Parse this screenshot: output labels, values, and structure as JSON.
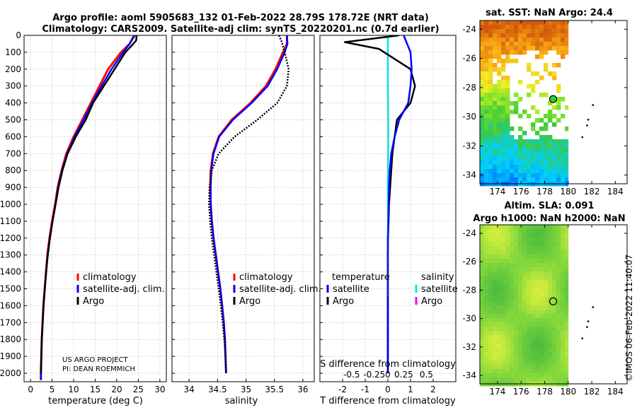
{
  "title": {
    "line1": "Argo profile: aoml 5905683_132 01-Feb-2022 28.79S 178.72E (NRT data)",
    "line2": "Climatology: CARS2009. Satellite-adj clim: synTS_20220201.nc (0.7d earlier)"
  },
  "credits": {
    "line1": "US ARGO PROJECT",
    "line2": "PI: DEAN ROEMMICH"
  },
  "watermark": "©IMOS 06-Feb-2022 11:40:07",
  "colors": {
    "climatology": "#ff0000",
    "satellite": "#0000ff",
    "argo": "#000000",
    "sat_salinity": "#00e5ee",
    "argo_salinity": "#ff00ff"
  },
  "depth_axis": {
    "ticks": [
      0,
      100,
      200,
      300,
      400,
      500,
      600,
      700,
      800,
      900,
      1000,
      1100,
      1200,
      1300,
      1400,
      1500,
      1600,
      1700,
      1800,
      1900,
      2000
    ],
    "range": [
      0,
      2050
    ]
  },
  "chart_data": [
    {
      "id": "temperature",
      "type": "line",
      "xlabel": "temperature (deg C)",
      "ylabel": "",
      "xlim": [
        -1.5,
        31.5
      ],
      "xticks": [
        0,
        5,
        10,
        15,
        20,
        25,
        30
      ],
      "xtick_labels": [
        "0",
        "5",
        "10",
        "15",
        "20",
        "25",
        "30"
      ],
      "legend": [
        "climatology",
        "satellite-adj. clim.",
        "Argo"
      ],
      "series": [
        {
          "name": "climatology",
          "color": "#ff0000",
          "x": [
            24.0,
            23.0,
            21.0,
            18.0,
            16.0,
            14.0,
            12.0,
            10.0,
            8.3,
            7.2,
            6.3,
            5.7,
            5.0,
            4.4,
            3.9,
            3.6,
            3.3,
            3.0,
            2.8,
            2.6,
            2.5,
            2.4,
            2.4
          ],
          "y": [
            0,
            50,
            100,
            200,
            300,
            400,
            500,
            600,
            700,
            800,
            900,
            1000,
            1100,
            1200,
            1300,
            1400,
            1500,
            1600,
            1700,
            1800,
            1900,
            2000,
            2040
          ]
        },
        {
          "name": "satellite-adj. clim.",
          "color": "#0000ff",
          "x": [
            24.2,
            23.0,
            21.5,
            18.8,
            16.5,
            14.3,
            12.3,
            10.2,
            8.5,
            7.3,
            6.4,
            5.8,
            5.1,
            4.5,
            4.0,
            3.6,
            3.3,
            3.0,
            2.8,
            2.6,
            2.5,
            2.4,
            2.4
          ],
          "y": [
            0,
            50,
            100,
            200,
            300,
            400,
            500,
            600,
            700,
            800,
            900,
            1000,
            1100,
            1200,
            1300,
            1400,
            1500,
            1600,
            1700,
            1800,
            1900,
            2000,
            2040
          ]
        },
        {
          "name": "Argo",
          "color": "#000000",
          "x": [
            24.6,
            24.5,
            23.5,
            22.0,
            19.5,
            17.0,
            14.5,
            12.8,
            10.5,
            8.6,
            7.4,
            6.5,
            5.8,
            5.1,
            4.5,
            4.0,
            3.6,
            3.3,
            3.0,
            2.8,
            2.6,
            2.5,
            2.4
          ],
          "y": [
            0,
            30,
            60,
            100,
            200,
            300,
            400,
            500,
            600,
            700,
            800,
            900,
            1000,
            1100,
            1200,
            1300,
            1400,
            1500,
            1600,
            1700,
            1800,
            1900,
            2000
          ],
          "dash": false
        }
      ]
    },
    {
      "id": "salinity",
      "type": "line",
      "xlabel": "salinity",
      "xlim": [
        33.7,
        36.2
      ],
      "xticks": [
        34,
        34.5,
        35,
        35.5,
        36
      ],
      "xtick_labels": [
        "34",
        "34.5",
        "35",
        "35.5",
        "36"
      ],
      "legend": [
        "climatology",
        "satellite-adj. clim.",
        "Argo"
      ],
      "series": [
        {
          "name": "climatology",
          "color": "#ff0000",
          "x": [
            35.72,
            35.72,
            35.65,
            35.52,
            35.35,
            35.08,
            34.75,
            34.52,
            34.42,
            34.38,
            34.37,
            34.38,
            34.4,
            34.43,
            34.47,
            34.51,
            34.55,
            34.58,
            34.61,
            34.63,
            34.64,
            34.65
          ],
          "y": [
            0,
            50,
            100,
            200,
            300,
            400,
            500,
            600,
            700,
            800,
            900,
            1000,
            1100,
            1200,
            1300,
            1400,
            1500,
            1600,
            1700,
            1800,
            1900,
            2000
          ]
        },
        {
          "name": "satellite-adj. clim.",
          "color": "#0000ff",
          "x": [
            35.72,
            35.73,
            35.68,
            35.55,
            35.38,
            35.1,
            34.77,
            34.53,
            34.43,
            34.39,
            34.38,
            34.38,
            34.4,
            34.43,
            34.47,
            34.51,
            34.55,
            34.58,
            34.61,
            34.63,
            34.64,
            34.65
          ],
          "y": [
            0,
            50,
            100,
            200,
            300,
            400,
            500,
            600,
            700,
            800,
            900,
            1000,
            1100,
            1200,
            1300,
            1400,
            1500,
            1600,
            1700,
            1800,
            1900,
            2000
          ]
        },
        {
          "name": "Argo",
          "color": "#000000",
          "x": [
            35.58,
            35.62,
            35.68,
            35.75,
            35.72,
            35.55,
            35.2,
            34.8,
            34.52,
            34.4,
            34.36,
            34.35,
            34.37,
            34.4,
            34.44,
            34.48,
            34.52,
            34.56,
            34.59,
            34.62,
            34.64,
            34.65
          ],
          "y": [
            0,
            30,
            100,
            200,
            300,
            400,
            500,
            600,
            700,
            800,
            900,
            1000,
            1100,
            1200,
            1300,
            1400,
            1500,
            1600,
            1700,
            1800,
            1900,
            2000
          ],
          "dash": true
        }
      ]
    },
    {
      "id": "difference",
      "type": "line",
      "xlabel": "T difference from climatology",
      "xlabel2": "S difference from climatology",
      "xlim": [
        -3,
        3
      ],
      "xticks": [
        -2,
        -1,
        0,
        1,
        2
      ],
      "xtick_labels": [
        "-2",
        "-1",
        "0",
        "1",
        "2"
      ],
      "s_xtick_labels": [
        "-0.5",
        "-0.25",
        "0",
        "0.25",
        "0.5"
      ],
      "legend_temperature_title": "temperature",
      "legend_salinity_title": "salinity",
      "legend_temperature": [
        "satellite",
        "Argo"
      ],
      "legend_salinity": [
        "satellite",
        "Argo"
      ],
      "series": [
        {
          "name": "temperature satellite",
          "color": "#0000ff",
          "x": [
            0.7,
            0.85,
            1.0,
            1.05,
            1.0,
            0.9,
            0.5,
            0.3,
            0.15,
            0.08,
            0.05,
            0.03,
            0.02,
            0.01,
            0.0,
            0.0,
            0.0,
            0.0,
            0.0,
            0.0,
            0.0
          ],
          "y": [
            0,
            50,
            100,
            200,
            300,
            400,
            500,
            600,
            700,
            800,
            900,
            1000,
            1100,
            1200,
            1300,
            1400,
            1500,
            1600,
            1700,
            1800,
            2000
          ]
        },
        {
          "name": "temperature Argo",
          "color": "#000000",
          "x": [
            0.5,
            -1.9,
            -0.4,
            1.0,
            1.2,
            1.0,
            0.4,
            0.3,
            0.2,
            0.15,
            0.1,
            0.05,
            0.03,
            0.0,
            0.0,
            0.0,
            0.0,
            0.0,
            0.0,
            0.0
          ],
          "y": [
            0,
            40,
            80,
            200,
            300,
            400,
            500,
            600,
            700,
            800,
            900,
            1000,
            1100,
            1200,
            1300,
            1400,
            1500,
            1600,
            1800,
            2000
          ]
        },
        {
          "name": "salinity satellite",
          "color": "#00e5ee",
          "x": [
            0.0,
            0.0,
            0.0,
            0.02,
            0.0,
            0.0,
            0.0,
            0.0
          ],
          "y": [
            0,
            100,
            300,
            600,
            900,
            1200,
            1600,
            2000
          ]
        },
        {
          "name": "salinity Argo",
          "color": "#ff00ff",
          "x": [],
          "y": []
        }
      ]
    },
    {
      "id": "sst_map",
      "type": "heatmap",
      "title": "sat. SST: NaN Argo: 24.4",
      "xticks": [
        174,
        176,
        178,
        180,
        182,
        184
      ],
      "yticks": [
        -24,
        -26,
        -28,
        -30,
        -32,
        -34
      ],
      "xlim": [
        172.5,
        185
      ],
      "ylim": [
        -34.6,
        -23.4
      ],
      "float_position": [
        178.72,
        -28.79
      ]
    },
    {
      "id": "sla_map",
      "type": "heatmap",
      "title": "Altim. SLA: 0.091",
      "title2": "Argo h1000: NaN h2000: NaN",
      "xticks": [
        174,
        176,
        178,
        180,
        182,
        184
      ],
      "yticks": [
        -24,
        -26,
        -28,
        -30,
        -32,
        -34
      ],
      "xlim": [
        172.5,
        185
      ],
      "ylim": [
        -34.6,
        -23.4
      ],
      "float_position": [
        178.72,
        -28.79
      ]
    }
  ]
}
